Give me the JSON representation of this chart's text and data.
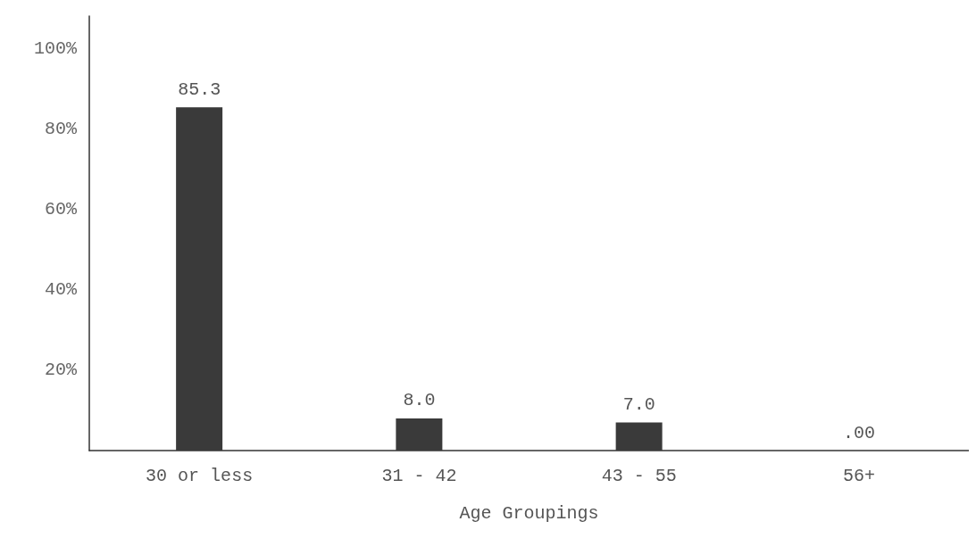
{
  "chart_data": {
    "type": "bar",
    "xlabel": "Age Groupings",
    "categories": [
      "30 or less",
      "31 - 42",
      "43 - 55",
      "56+"
    ],
    "values": [
      85.3,
      8.0,
      7.0,
      0
    ],
    "value_labels": [
      "85.3",
      "8.0",
      "7.0",
      ".00"
    ],
    "color": "#3a3a3a",
    "ylim": [
      0,
      108
    ],
    "yticks": [
      {
        "value": 20,
        "label": "20%"
      },
      {
        "value": 40,
        "label": "40%"
      },
      {
        "value": 60,
        "label": "60%"
      },
      {
        "value": 80,
        "label": "80%"
      },
      {
        "value": 100,
        "label": "100%"
      }
    ],
    "grid": false
  }
}
